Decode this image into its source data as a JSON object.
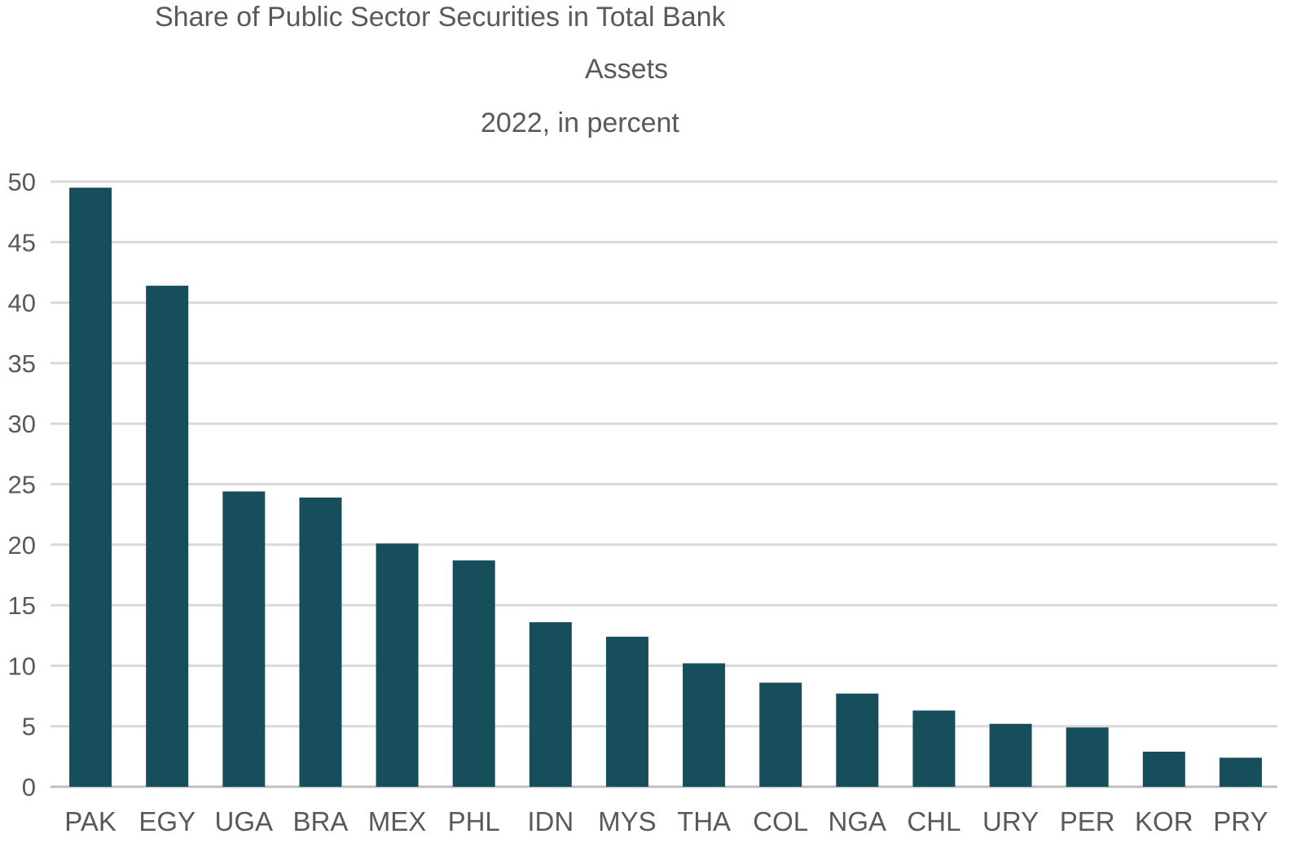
{
  "chart_data": {
    "type": "bar",
    "title_lines": [
      "Share of Public Sector Securities in Total Bank",
      "Assets",
      "2022, in percent"
    ],
    "categories": [
      "PAK",
      "EGY",
      "UGA",
      "BRA",
      "MEX",
      "PHL",
      "IDN",
      "MYS",
      "THA",
      "COL",
      "NGA",
      "CHL",
      "URY",
      "PER",
      "KOR",
      "PRY"
    ],
    "values": [
      49.5,
      41.4,
      24.4,
      23.9,
      20.1,
      18.7,
      13.6,
      12.4,
      10.2,
      8.6,
      7.7,
      6.3,
      5.2,
      4.9,
      2.9,
      2.4
    ],
    "ylim": [
      0,
      50
    ],
    "yticks": [
      0,
      5,
      10,
      15,
      20,
      25,
      30,
      35,
      40,
      45,
      50
    ],
    "grid": true,
    "legend": "none",
    "bar_color": "#164e5c",
    "grid_color": "#d9d9d9"
  }
}
